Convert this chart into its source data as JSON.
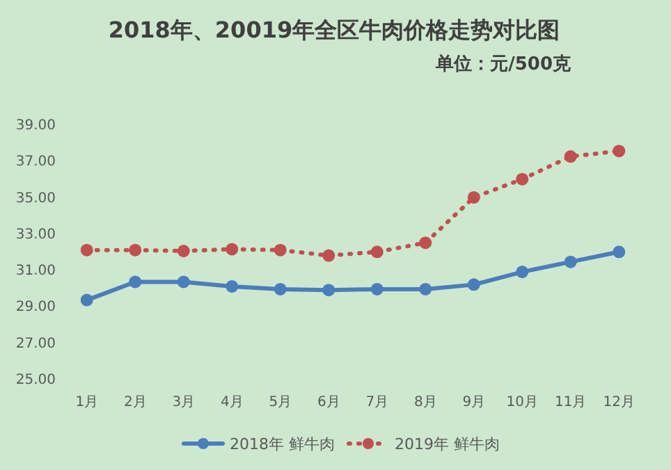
{
  "chart_data": {
    "type": "line",
    "title": "2018年、20019年全区牛肉价格走势对比图",
    "subtitle": "单位：元/500克",
    "categories": [
      "1月",
      "2月",
      "3月",
      "4月",
      "5月",
      "6月",
      "7月",
      "8月",
      "9月",
      "10月",
      "11月",
      "12月"
    ],
    "series": [
      {
        "name": "2018年 鲜牛肉",
        "color": "#4a7ebb",
        "line_style": "solid",
        "values": [
          29.3,
          30.3,
          30.3,
          30.05,
          29.9,
          29.85,
          29.9,
          29.9,
          30.15,
          30.85,
          31.4,
          31.95
        ]
      },
      {
        "name": "2019年 鲜牛肉",
        "color": "#c0504d",
        "line_style": "dotted",
        "values": [
          32.05,
          32.05,
          32.0,
          32.1,
          32.05,
          31.75,
          31.95,
          32.45,
          34.95,
          35.95,
          37.2,
          37.5
        ]
      }
    ],
    "ylim": [
      25,
      39
    ],
    "yticks": [
      {
        "value": 25,
        "label": "25.00"
      },
      {
        "value": 27,
        "label": "27.00"
      },
      {
        "value": 29,
        "label": "29.00"
      },
      {
        "value": 31,
        "label": "31.00"
      },
      {
        "value": 33,
        "label": "33.00"
      },
      {
        "value": 35,
        "label": "35.00"
      },
      {
        "value": 37,
        "label": "37.00"
      },
      {
        "value": 39,
        "label": "39.00"
      }
    ],
    "marker": "circle",
    "grid": false,
    "legend": "bottom"
  }
}
